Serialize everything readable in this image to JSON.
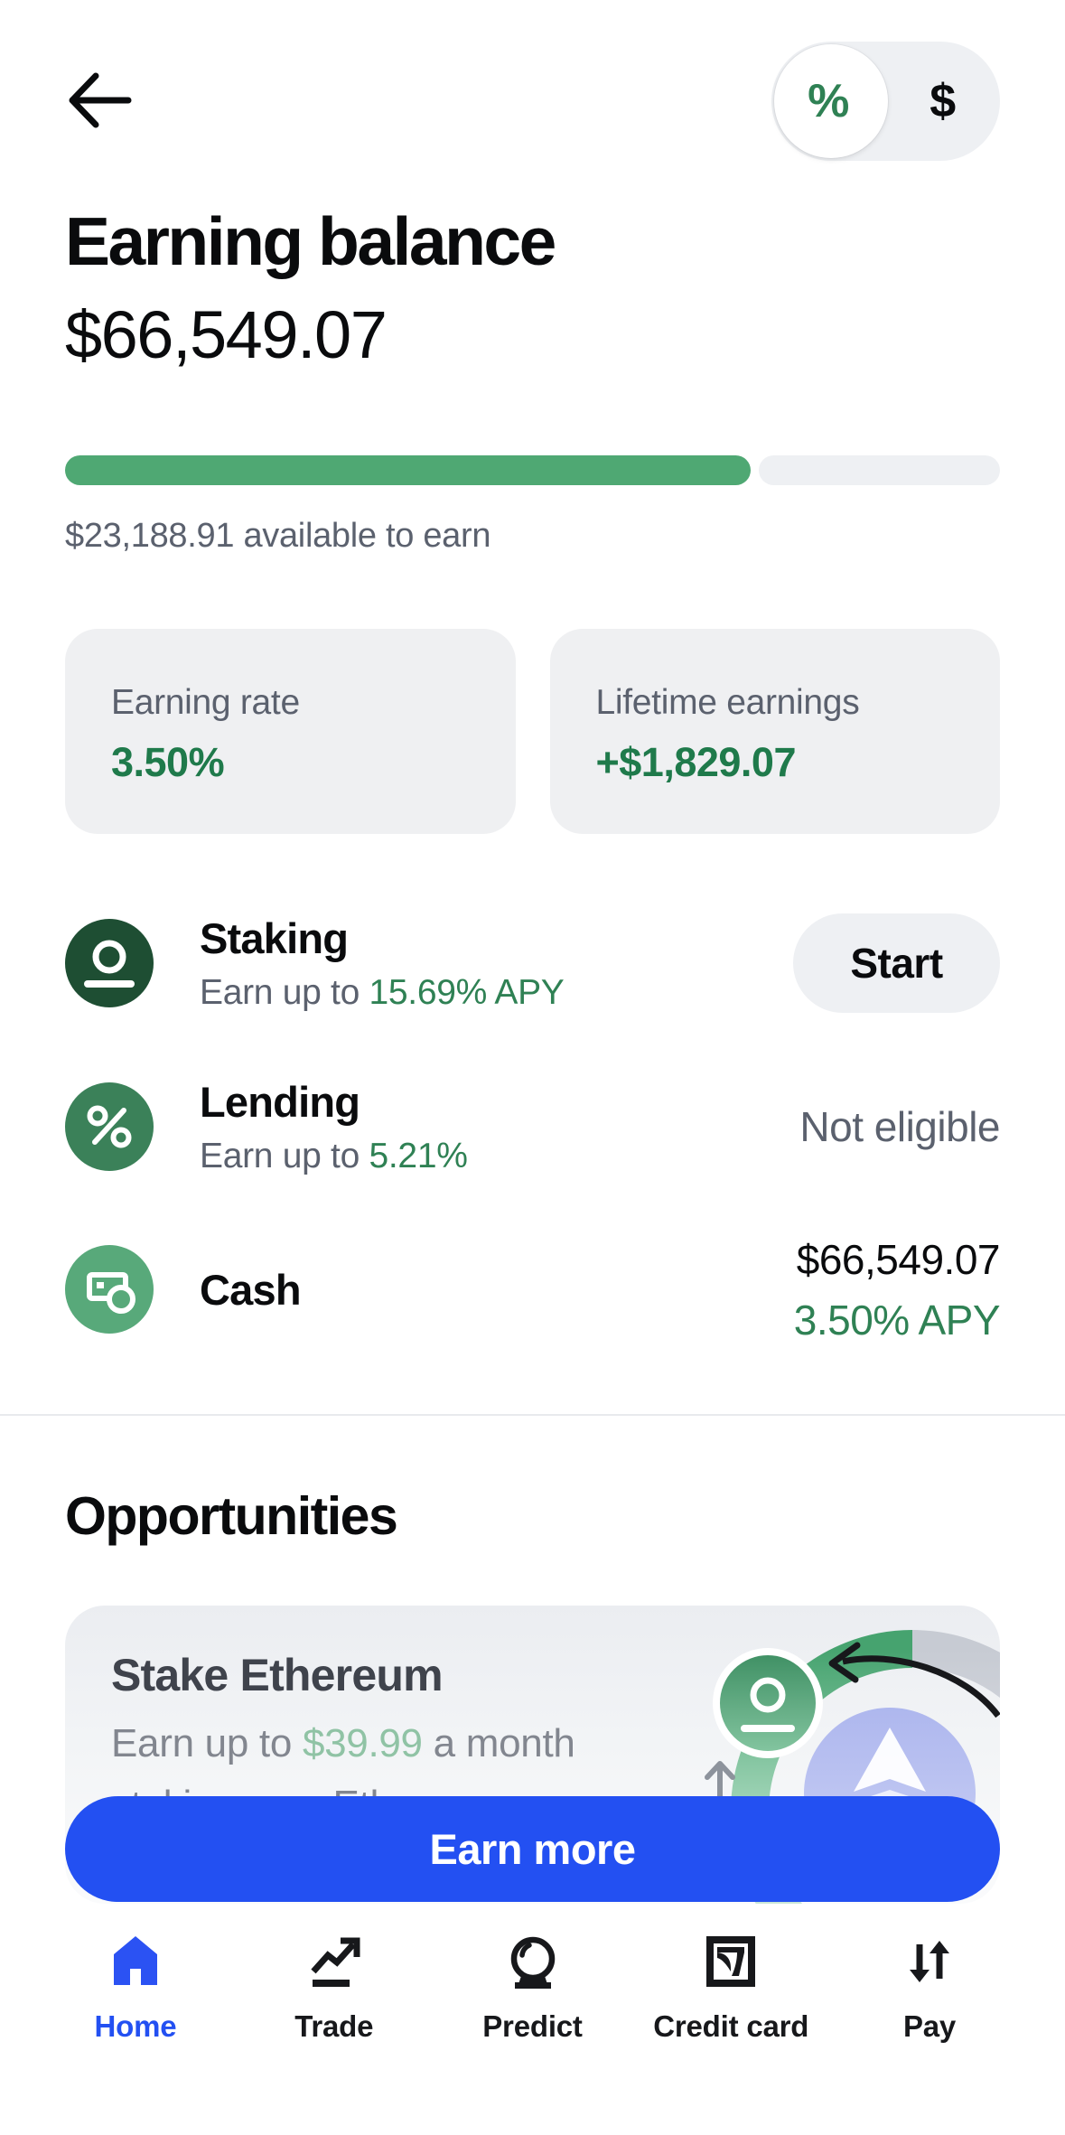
{
  "header": {
    "toggle": {
      "percent_label": "%",
      "dollar_label": "$",
      "selected": "percent"
    }
  },
  "balance": {
    "title": "Earning balance",
    "amount": "$66,549.07",
    "available": "$23,188.91 available to earn",
    "progress_pct": 73.3
  },
  "stats": {
    "earning_rate": {
      "label": "Earning rate",
      "value": "3.50%"
    },
    "lifetime": {
      "label": "Lifetime earnings",
      "value": "+$1,829.07"
    }
  },
  "products": {
    "staking": {
      "name": "Staking",
      "desc_prefix": "Earn up to ",
      "desc_highlight": "15.69% APY",
      "action": "Start"
    },
    "lending": {
      "name": "Lending",
      "desc_prefix": "Earn up to ",
      "desc_highlight": "5.21%",
      "status": "Not eligible"
    },
    "cash": {
      "name": "Cash",
      "amount": "$66,549.07",
      "apy": "3.50% APY"
    }
  },
  "opportunities": {
    "heading": "Opportunities",
    "card": {
      "title": "Stake Ethereum",
      "line1_prefix": "Earn up to ",
      "line1_highlight": "$39.99",
      "line1_suffix": " a month",
      "line2": "staking your Ethereum"
    }
  },
  "cta": {
    "label": "Earn more"
  },
  "nav": {
    "home": "Home",
    "trade": "Trade",
    "predict": "Predict",
    "credit_card": "Credit card",
    "pay": "Pay"
  },
  "colors": {
    "ink": "#0A0B0D",
    "muted": "#5B616E",
    "accent-blue": "#2350F2",
    "green-text": "#2F8154",
    "green-strong": "#1F7A4B",
    "progress-green": "#4FA873",
    "icon-dark-green": "#1E4E33",
    "icon-mid-green": "#3B8159",
    "icon-light-green": "#58A97A",
    "pill-bg": "#EEF0F3",
    "card-bg": "#EFF0F2",
    "divider": "#E8EAED",
    "opp-ink": "#3F434C",
    "opp-gray": "#82868F",
    "opp-green": "#90C3A5",
    "nav-ink": "#17181B"
  }
}
